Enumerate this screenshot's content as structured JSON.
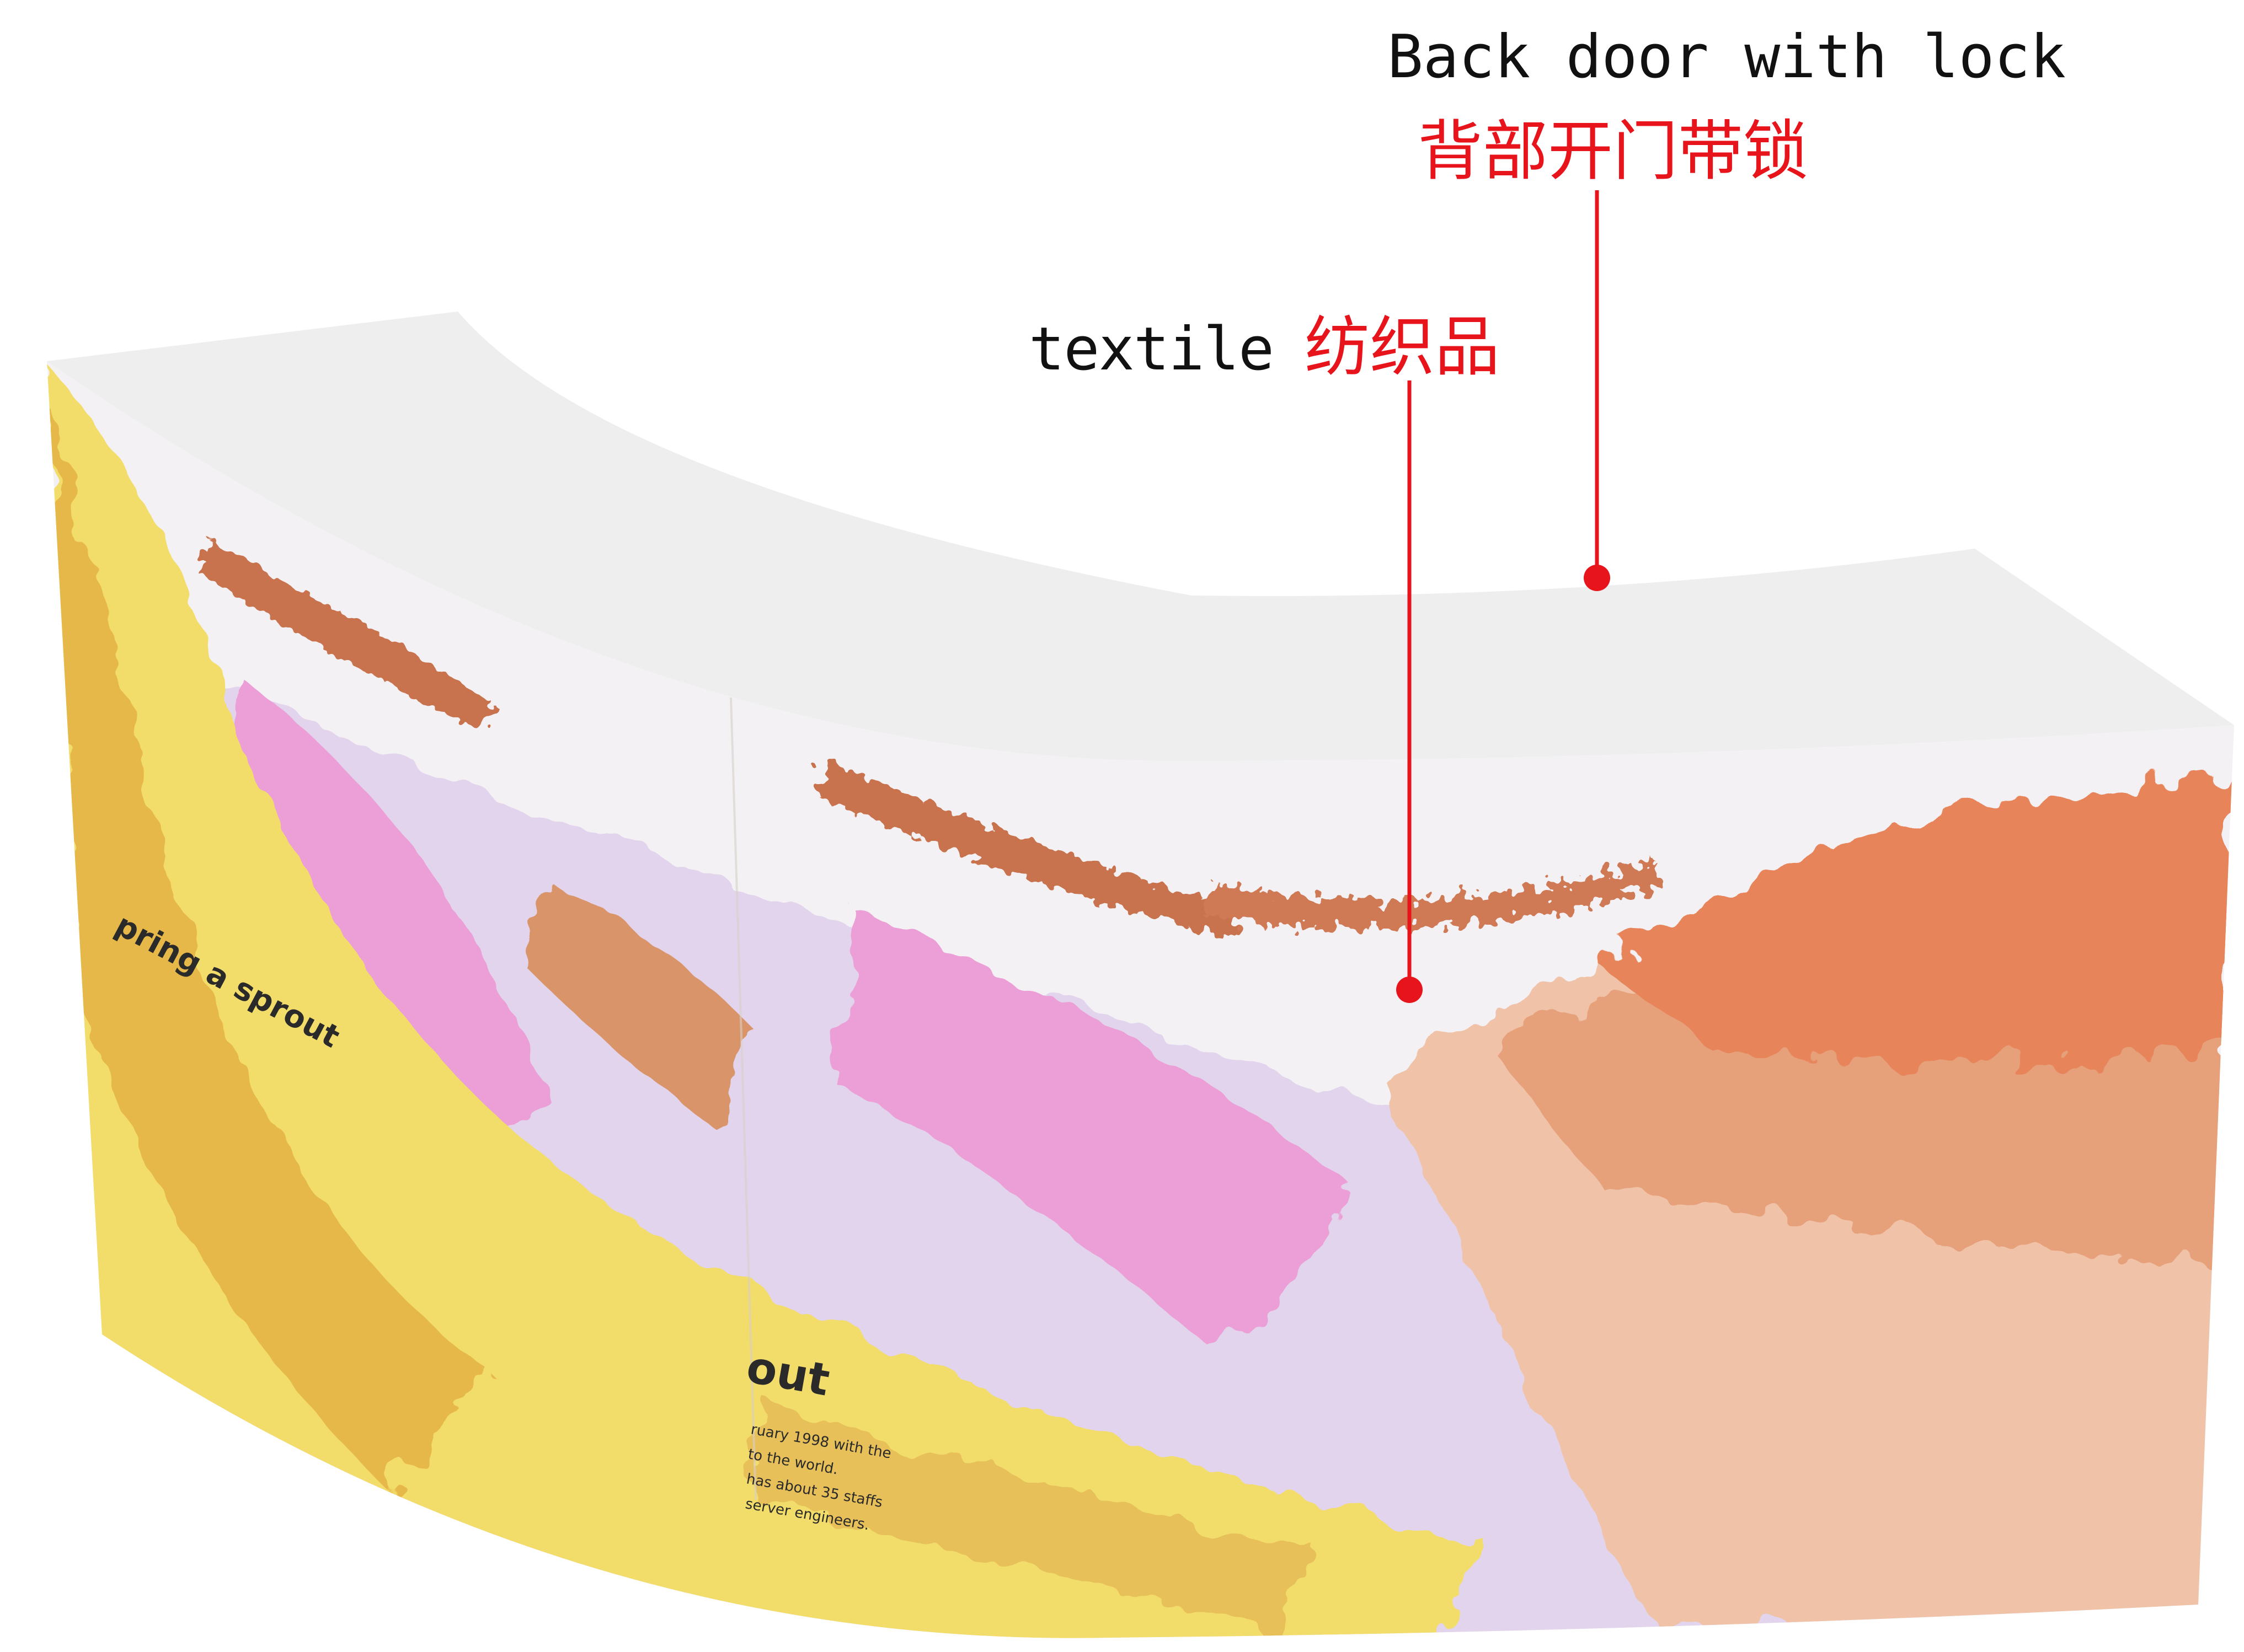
{
  "annotations": {
    "back_door": {
      "label_en": "Back door with lock",
      "label_cn": "背部开门带锁"
    },
    "textile": {
      "label_en": "textile",
      "label_cn": "纺织品"
    }
  },
  "printed_graphic": {
    "title_left": "pring a sprout",
    "title_right": "out",
    "body_lines": [
      "ruary 1998 with the",
      "to the world.",
      "has about 35 staffs",
      "server engineers."
    ]
  },
  "colors": {
    "annotation_red": "#e8141b",
    "top_surface": "#eeeeee",
    "yellow_paint": "#f2dc6a",
    "orange_paint": "#e8845a",
    "pink_paint": "#ec9fd6",
    "lilac_paint": "#e2d4ec",
    "peach_paint": "#f0c3a8"
  }
}
